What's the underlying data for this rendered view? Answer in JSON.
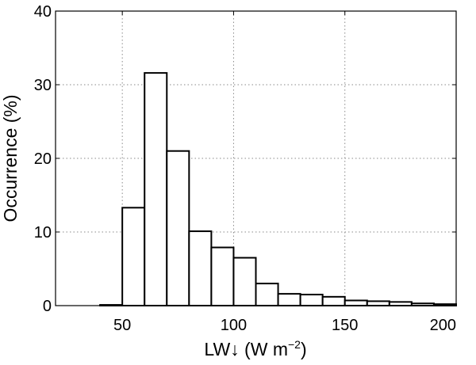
{
  "chart_data": {
    "type": "bar",
    "title": "",
    "xlabel_main": "LW↓ (W m",
    "xlabel_sup": "−2",
    "xlabel_tail": ")",
    "ylabel": "Occurrence (%)",
    "xlim": [
      20,
      200
    ],
    "ylim": [
      0,
      40
    ],
    "xticks": [
      50,
      100,
      150,
      200
    ],
    "yticks": [
      0,
      10,
      20,
      30,
      40
    ],
    "grid": true,
    "bin_width": 10,
    "bin_starts": [
      30,
      40,
      50,
      60,
      70,
      80,
      90,
      100,
      110,
      120,
      130,
      140,
      150,
      160,
      170,
      180,
      190
    ],
    "values": [
      0.0,
      0.1,
      13.3,
      31.6,
      21.0,
      10.1,
      7.9,
      6.5,
      3.0,
      1.6,
      1.5,
      1.2,
      0.7,
      0.6,
      0.5,
      0.3,
      0.2
    ]
  }
}
